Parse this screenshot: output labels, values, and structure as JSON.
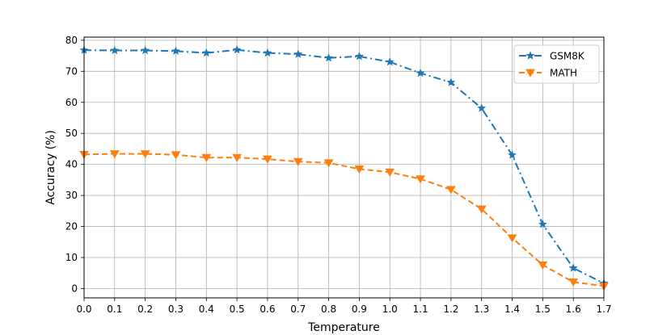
{
  "chart_data": {
    "type": "line",
    "xlabel": "Temperature",
    "ylabel": "Accuracy (%)",
    "xlim": [
      0.0,
      1.7
    ],
    "ylim": [
      -3,
      81
    ],
    "x": [
      0.0,
      0.1,
      0.2,
      0.3,
      0.4,
      0.5,
      0.6,
      0.7,
      0.8,
      0.9,
      1.0,
      1.1,
      1.2,
      1.3,
      1.4,
      1.5,
      1.6,
      1.7
    ],
    "xticks": [
      "0.0",
      "0.1",
      "0.2",
      "0.3",
      "0.4",
      "0.5",
      "0.6",
      "0.7",
      "0.8",
      "0.9",
      "1.0",
      "1.1",
      "1.2",
      "1.3",
      "1.4",
      "1.5",
      "1.6",
      "1.7"
    ],
    "yticks": [
      0,
      10,
      20,
      30,
      40,
      50,
      60,
      70,
      80
    ],
    "grid": true,
    "legend_position": "top-right",
    "series": [
      {
        "name": "GSM8K",
        "color": "#1f77b4",
        "marker": "star",
        "linestyle": "dash-dot",
        "values": [
          76.8,
          76.7,
          76.7,
          76.5,
          75.9,
          76.9,
          75.9,
          75.5,
          74.3,
          74.8,
          73.0,
          69.4,
          66.4,
          58.1,
          43.0,
          20.7,
          6.6,
          1.7
        ]
      },
      {
        "name": "MATH",
        "color": "#ff7f0e",
        "marker": "triangle-down",
        "linestyle": "dashed",
        "values": [
          43.2,
          43.4,
          43.4,
          43.1,
          42.2,
          42.2,
          41.7,
          40.9,
          40.5,
          38.5,
          37.5,
          35.3,
          31.9,
          25.6,
          16.3,
          7.6,
          2.1,
          0.8
        ]
      }
    ]
  }
}
